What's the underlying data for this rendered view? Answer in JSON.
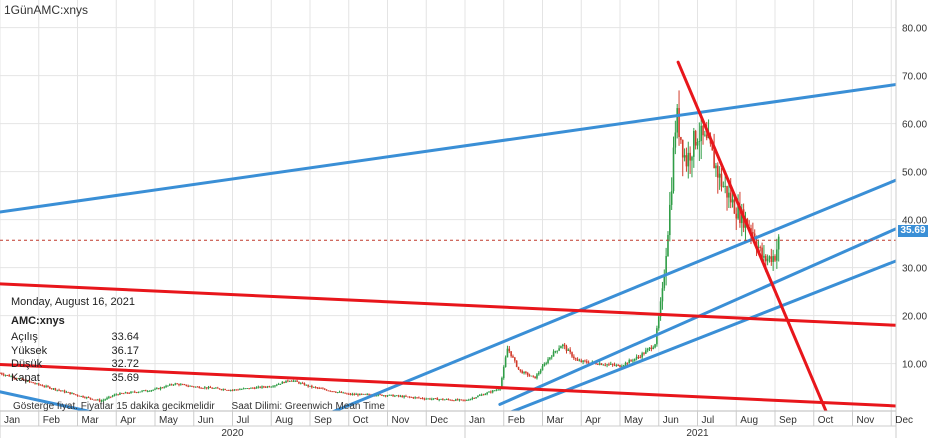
{
  "title": "1GünAMC:xnys",
  "info": {
    "date": "Monday, August 16, 2021",
    "symbol": "AMC:xnys",
    "rows": [
      {
        "label": "Açılış",
        "value": "33.64"
      },
      {
        "label": "Yüksek",
        "value": "36.17"
      },
      {
        "label": "Düşük",
        "value": "32.72"
      },
      {
        "label": "Kapat",
        "value": "35.69"
      }
    ]
  },
  "notice": {
    "delay": "Gösterge fiyat. Fiyatlar 15 dakika gecikmelidir",
    "timezone": "Saat Dilimi: Greenwich Mean Time"
  },
  "last_price": "35.69",
  "colors": {
    "red_line": "#e8161b",
    "blue_line": "#3a8fd6",
    "candle_up": "#2f9d46",
    "candle_down": "#d23a2a",
    "price_tag": "#3a8fd6",
    "grid": "#e4e4e4"
  },
  "chart_data": {
    "type": "candlestick",
    "y_ticks": [
      "80.00",
      "70.00",
      "60.00",
      "50.00",
      "40.00",
      "30.00",
      "20.00",
      "10.00"
    ],
    "ylim": [
      0,
      82
    ],
    "x_months": [
      "Jan",
      "Feb",
      "Mar",
      "Apr",
      "May",
      "Jun",
      "Jul",
      "Aug",
      "Sep",
      "Oct",
      "Nov",
      "Dec",
      "Jan",
      "Feb",
      "Mar",
      "Apr",
      "May",
      "Jun",
      "Jul",
      "Aug",
      "Sep",
      "Oct",
      "Nov",
      "Dec"
    ],
    "x_years": [
      "2020",
      "2021"
    ],
    "price_path": [
      {
        "m": 0.0,
        "p": 8.0
      },
      {
        "m": 1.0,
        "p": 5.6
      },
      {
        "m": 2.0,
        "p": 3.4
      },
      {
        "m": 2.6,
        "p": 2.2
      },
      {
        "m": 3.0,
        "p": 3.6
      },
      {
        "m": 4.0,
        "p": 4.6
      },
      {
        "m": 4.5,
        "p": 5.8
      },
      {
        "m": 5.0,
        "p": 5.2
      },
      {
        "m": 6.0,
        "p": 4.5
      },
      {
        "m": 7.0,
        "p": 5.3
      },
      {
        "m": 7.5,
        "p": 6.6
      },
      {
        "m": 8.0,
        "p": 5.2
      },
      {
        "m": 9.0,
        "p": 3.6
      },
      {
        "m": 10.0,
        "p": 3.4
      },
      {
        "m": 11.0,
        "p": 2.7
      },
      {
        "m": 12.0,
        "p": 2.3
      },
      {
        "m": 12.9,
        "p": 4.8
      },
      {
        "m": 13.1,
        "p": 13.3
      },
      {
        "m": 13.4,
        "p": 8.5
      },
      {
        "m": 13.8,
        "p": 7.0
      },
      {
        "m": 14.2,
        "p": 11.5
      },
      {
        "m": 14.5,
        "p": 14.0
      },
      {
        "m": 14.9,
        "p": 10.5
      },
      {
        "m": 15.5,
        "p": 10.0
      },
      {
        "m": 16.0,
        "p": 9.5
      },
      {
        "m": 16.5,
        "p": 11.5
      },
      {
        "m": 16.9,
        "p": 14.0
      },
      {
        "m": 17.1,
        "p": 25.0
      },
      {
        "m": 17.3,
        "p": 44.0
      },
      {
        "m": 17.45,
        "p": 62.0
      },
      {
        "m": 17.7,
        "p": 52.0
      },
      {
        "m": 18.0,
        "p": 58.0
      },
      {
        "m": 18.3,
        "p": 55.0
      },
      {
        "m": 18.6,
        "p": 48.0
      },
      {
        "m": 19.0,
        "p": 42.0
      },
      {
        "m": 19.4,
        "p": 38.0
      },
      {
        "m": 19.7,
        "p": 31.5
      },
      {
        "m": 20.0,
        "p": 32.5
      },
      {
        "m": 20.1,
        "p": 35.69
      }
    ],
    "trendlines": [
      {
        "color": "blue",
        "from": {
          "m": -0.5,
          "p": 41.0
        },
        "to": {
          "m": 23.6,
          "p": 68.7
        }
      },
      {
        "color": "blue",
        "from": {
          "m": 8.0,
          "p": -2.0
        },
        "to": {
          "m": 23.6,
          "p": 49.8
        }
      },
      {
        "color": "blue",
        "from": {
          "m": 12.9,
          "p": 1.5
        },
        "to": {
          "m": 23.6,
          "p": 39.8
        }
      },
      {
        "color": "blue",
        "from": {
          "m": 12.9,
          "p": -1.0
        },
        "to": {
          "m": 23.6,
          "p": 32.9
        }
      },
      {
        "color": "blue",
        "from": {
          "m": -0.5,
          "p": 5.0
        },
        "to": {
          "m": 4.6,
          "p": -4.0
        }
      },
      {
        "color": "red",
        "from": {
          "m": -0.5,
          "p": 26.8
        },
        "to": {
          "m": 23.6,
          "p": 17.8
        }
      },
      {
        "color": "red",
        "from": {
          "m": -0.5,
          "p": 10.0
        },
        "to": {
          "m": 23.6,
          "p": 1.0
        }
      },
      {
        "color": "red",
        "from": {
          "m": 17.5,
          "p": 72.8
        },
        "to": {
          "m": 21.4,
          "p": -1.5
        }
      }
    ],
    "reference_line": 35.69
  }
}
